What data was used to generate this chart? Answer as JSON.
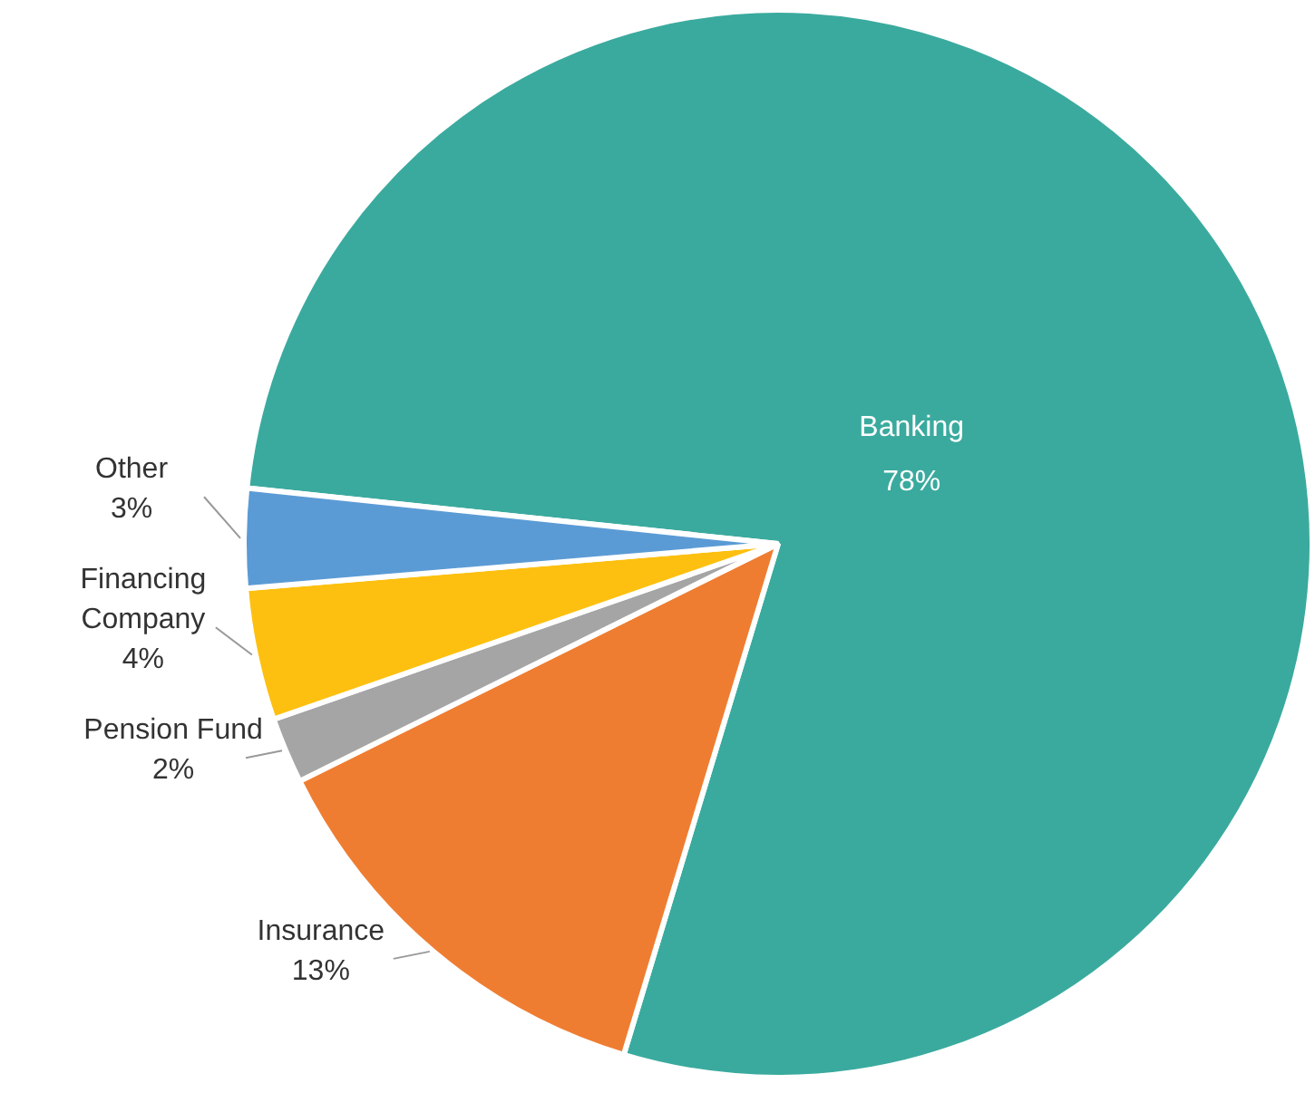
{
  "chart_data": {
    "type": "pie",
    "categories": [
      "Banking",
      "Insurance",
      "Pension Fund",
      "Financing Company",
      "Other"
    ],
    "values": [
      78,
      13,
      2,
      4,
      3
    ],
    "colors": [
      "#3aaa9e",
      "#ef7d31",
      "#a5a5a5",
      "#fdc010",
      "#5b9bd5"
    ],
    "value_labels": [
      "78%",
      "13%",
      "2%",
      "4%",
      "3%"
    ],
    "legend": false
  }
}
